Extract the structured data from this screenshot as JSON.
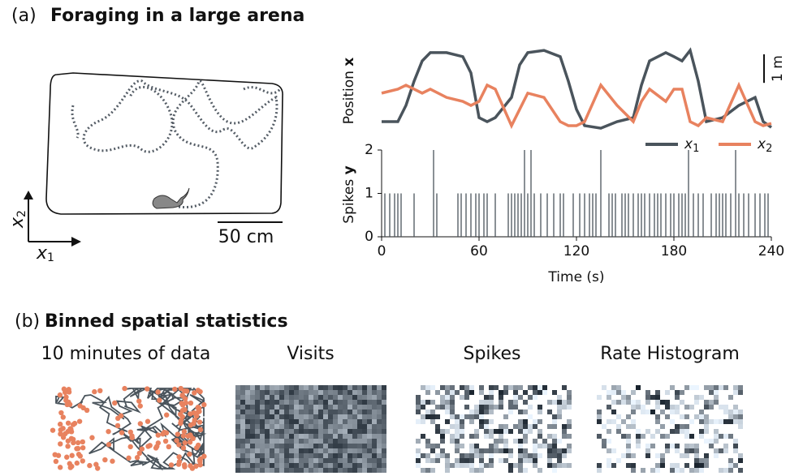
{
  "panel_a": {
    "label": "(a)",
    "title": "Foraging in a large arena",
    "arena": {
      "x1_label": "x",
      "x1_sub": "1",
      "x2_label": "x",
      "x2_sub": "2",
      "scale_bar": "50 cm"
    }
  },
  "chart_data": [
    {
      "type": "line",
      "ylabel": "Position",
      "ylabel_bold": "x",
      "xlim": [
        0,
        240
      ],
      "ylim": [
        0,
        2.9
      ],
      "scale_bar": {
        "value": 1,
        "label": "1 m"
      },
      "x": [
        0,
        10,
        15,
        20,
        25,
        30,
        40,
        50,
        55,
        60,
        65,
        70,
        80,
        85,
        90,
        100,
        110,
        115,
        120,
        125,
        135,
        145,
        155,
        160,
        165,
        175,
        180,
        185,
        190,
        195,
        200,
        210,
        220,
        230,
        235,
        240
      ],
      "series": [
        {
          "name": "x",
          "sub": "1",
          "color": "#4a545c",
          "values": [
            0.34,
            0.34,
            0.91,
            1.76,
            2.47,
            2.76,
            2.76,
            2.62,
            2.05,
            0.48,
            0.34,
            0.48,
            1.19,
            2.33,
            2.76,
            2.84,
            2.62,
            1.76,
            0.77,
            0.2,
            0.11,
            0.34,
            0.48,
            1.62,
            2.47,
            2.76,
            2.62,
            2.47,
            2.84,
            1.76,
            0.34,
            0.48,
            0.91,
            1.19,
            0.34,
            0.14
          ]
        },
        {
          "name": "x",
          "sub": "2",
          "color": "#e8825f",
          "values": [
            1.34,
            1.48,
            1.62,
            1.48,
            1.34,
            1.48,
            1.19,
            1.05,
            0.91,
            1.05,
            1.62,
            1.48,
            0.2,
            0.77,
            1.34,
            1.19,
            0.34,
            0.2,
            0.2,
            0.34,
            1.62,
            0.91,
            0.34,
            1.05,
            1.48,
            1.05,
            1.48,
            1.48,
            0.34,
            0.2,
            0.48,
            0.34,
            1.62,
            0.34,
            0.2,
            0.28
          ]
        }
      ]
    },
    {
      "type": "spikes",
      "ylabel": "Spikes",
      "ylabel_bold": "y",
      "xlabel": "Time (s)",
      "color": "#4a545c",
      "xlim": [
        0,
        240
      ],
      "ylim": [
        0,
        2
      ],
      "xticks": [
        0,
        60,
        120,
        180,
        240
      ],
      "yticks": [
        0,
        1,
        2
      ],
      "x": [
        2,
        5,
        8,
        10,
        12,
        20,
        32,
        34,
        47,
        49,
        52,
        55,
        58,
        60,
        63,
        65,
        70,
        78,
        80,
        82,
        84,
        86,
        88,
        90,
        92,
        94,
        98,
        102,
        106,
        110,
        112,
        118,
        122,
        125,
        128,
        130,
        132,
        135,
        140,
        142,
        144,
        148,
        150,
        152,
        155,
        158,
        160,
        162,
        165,
        168,
        170,
        172,
        175,
        178,
        180,
        183,
        185,
        187,
        189,
        192,
        195,
        198,
        203,
        206,
        208,
        210,
        212,
        215,
        218,
        220,
        223,
        226,
        230,
        233,
        236,
        238
      ],
      "values": [
        1,
        1,
        1,
        1,
        1,
        1,
        2,
        1,
        1,
        1,
        1,
        1,
        1,
        1,
        1,
        1,
        1,
        1,
        1,
        1,
        1,
        1,
        2,
        1,
        2,
        1,
        1,
        1,
        1,
        1,
        1,
        1,
        1,
        1,
        1,
        1,
        1,
        2,
        1,
        1,
        1,
        1,
        1,
        1,
        1,
        1,
        1,
        1,
        1,
        1,
        1,
        1,
        1,
        1,
        1,
        1,
        1,
        1,
        2,
        1,
        1,
        1,
        1,
        1,
        1,
        1,
        1,
        1,
        2,
        1,
        1,
        1,
        1,
        1,
        1,
        1
      ]
    }
  ],
  "panel_b": {
    "label": "(b)",
    "title": "Binned spatial statistics",
    "images": [
      "10 minutes of data",
      "Visits",
      "Spikes",
      "Rate Histogram"
    ]
  }
}
